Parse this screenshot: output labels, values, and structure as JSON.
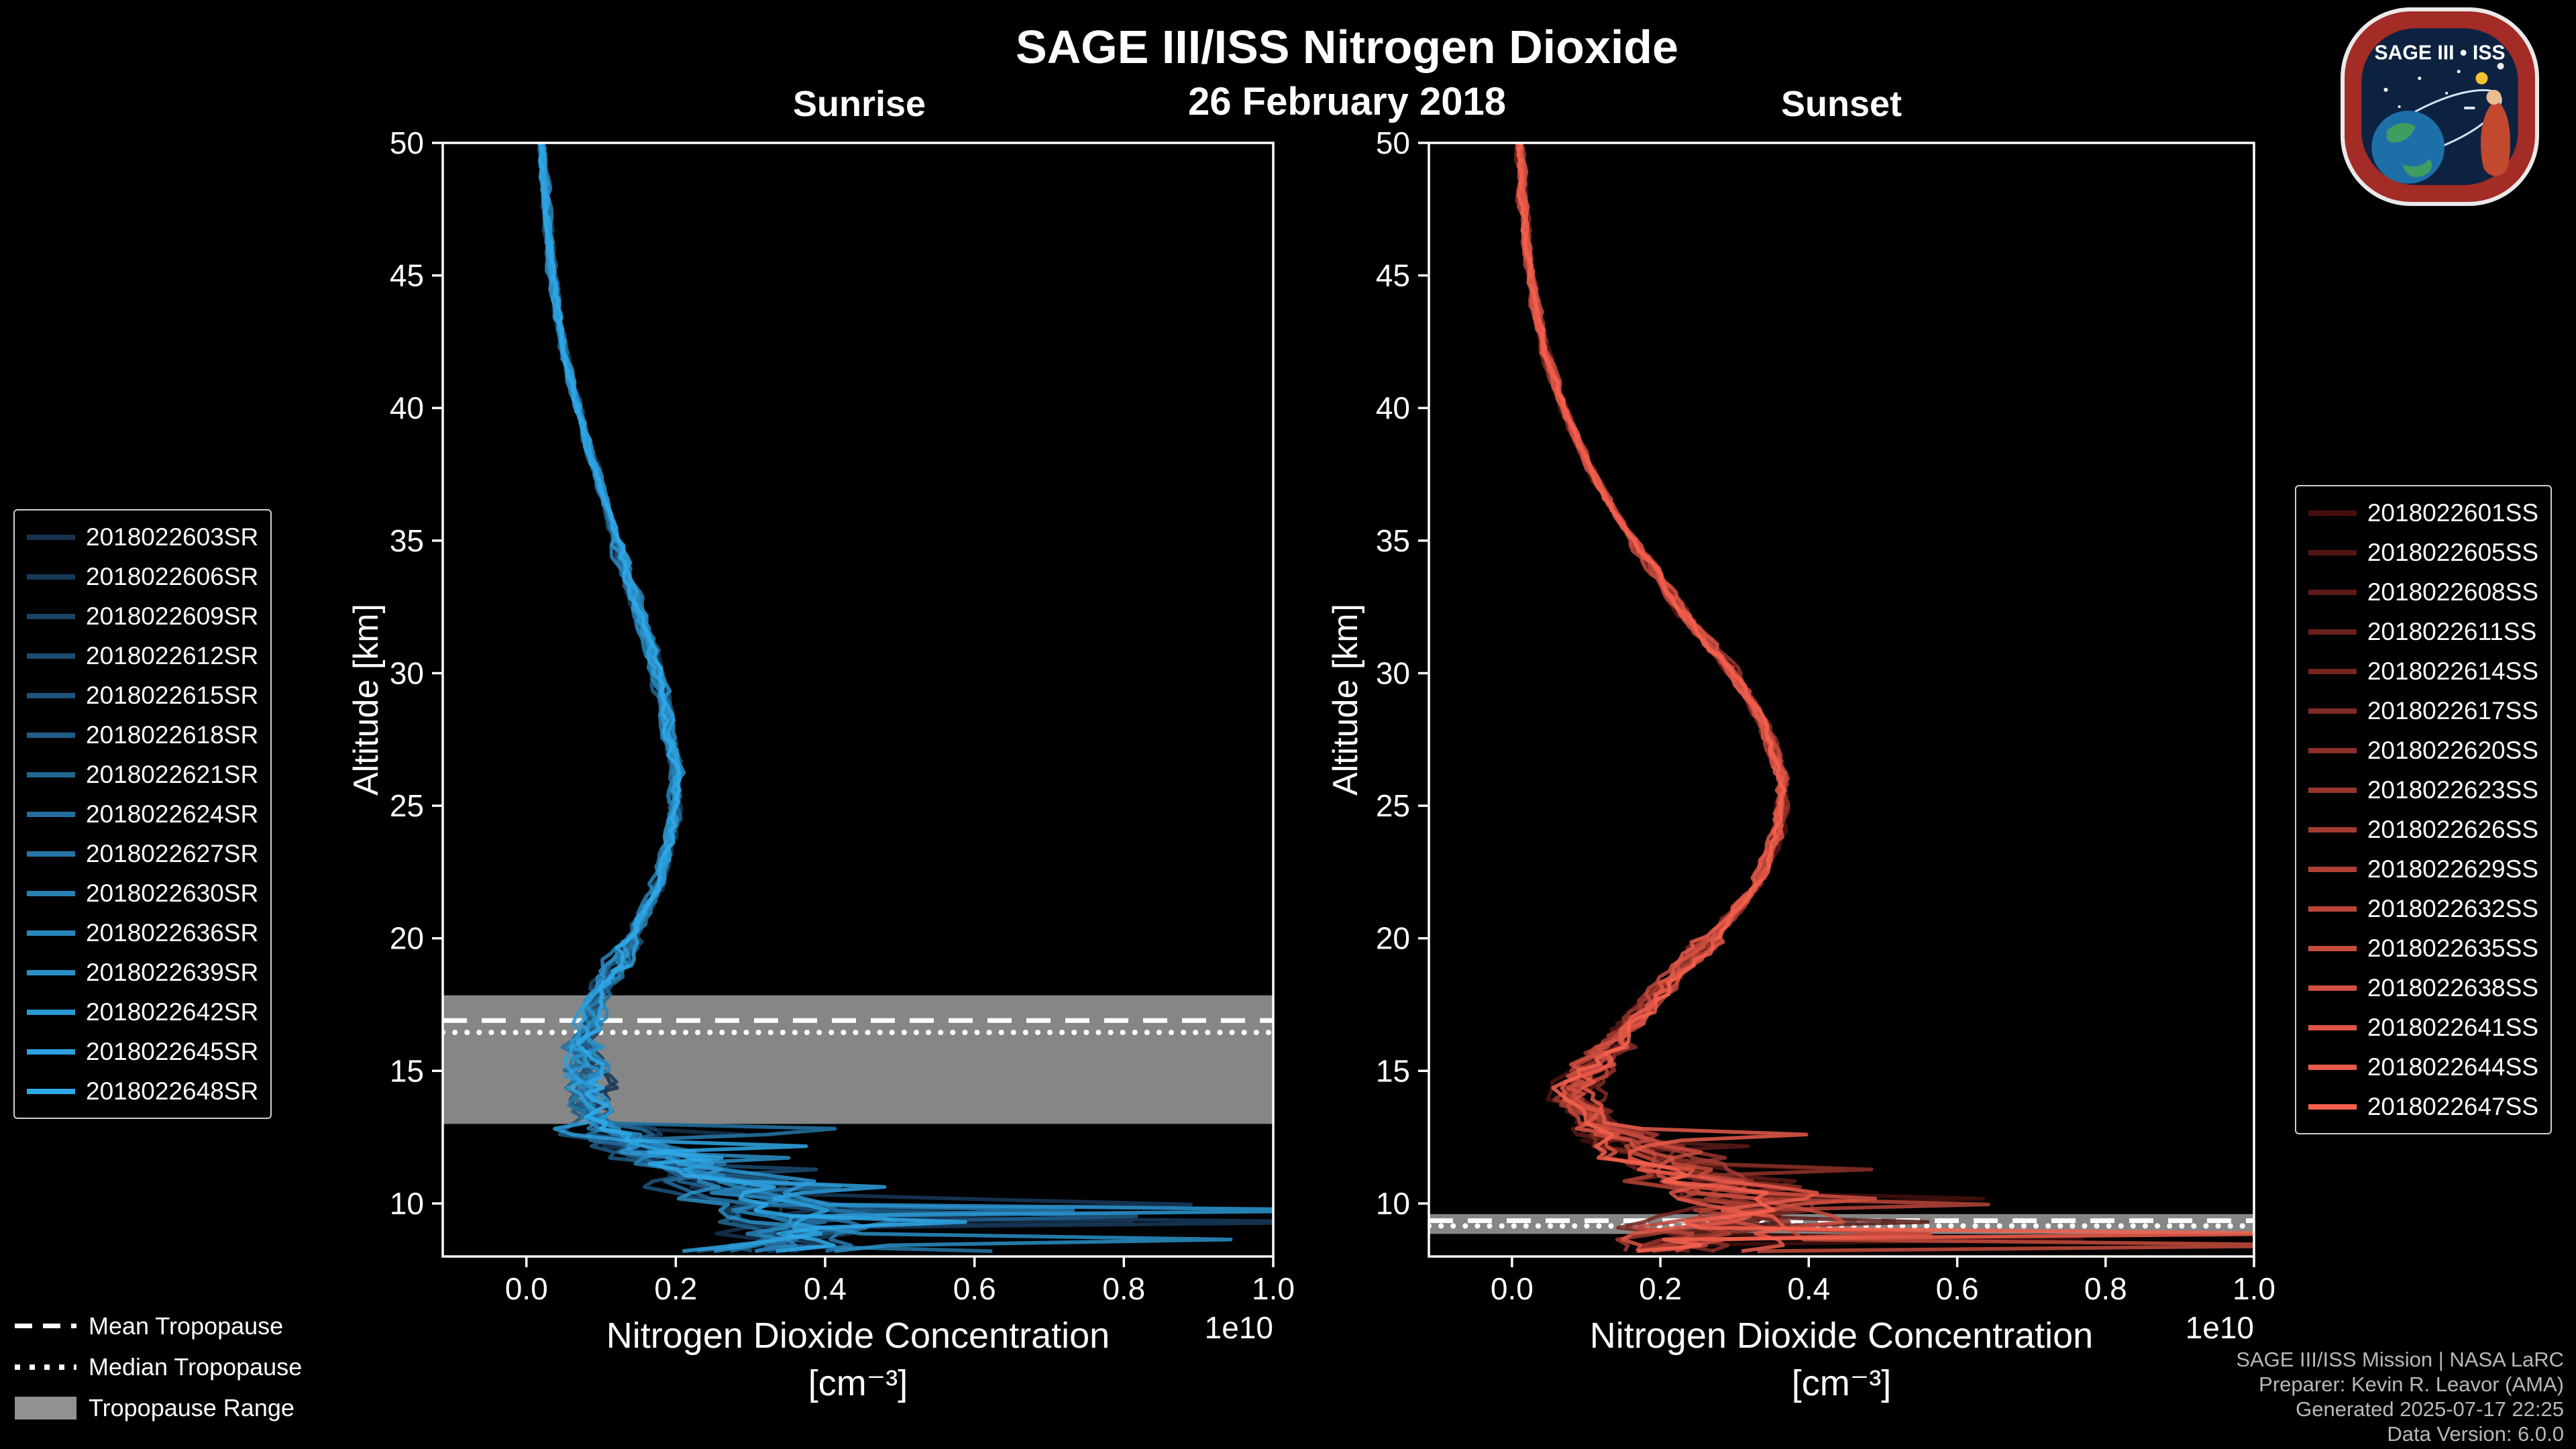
{
  "header": {
    "title": "SAGE III/ISS Nitrogen Dioxide",
    "date": "26 February 2018"
  },
  "logo": {
    "text": "SAGE III • ISS"
  },
  "colors": {
    "background": "#000000",
    "text": "#ffffff",
    "credits_text": "#b8b8b8",
    "legend_border": "#cfcfcf"
  },
  "tropopause_legend": {
    "mean_label": "Mean Tropopause",
    "median_label": "Median Tropopause",
    "range_label": "Tropopause Range"
  },
  "credits": [
    "SAGE III/ISS Mission | NASA LaRC",
    "Preparer: Kevin R. Leavor (AMA)",
    "Generated 2025-07-17 22:25",
    "Data Version: 6.0.0"
  ],
  "chart_data": [
    {
      "type": "line",
      "panel": "sunrise",
      "title": "Sunrise",
      "xlabel": "Nitrogen Dioxide Concentration",
      "xlabel_units": "[cm⁻³]",
      "ylabel": "Altitude [km]",
      "offset_text": "1e10",
      "xlim": [
        -0.112,
        1.0
      ],
      "ylim": [
        8.0,
        50.0
      ],
      "xticks": [
        0.0,
        0.2,
        0.4,
        0.6,
        0.8,
        1.0
      ],
      "yticks": [
        10,
        15,
        20,
        25,
        30,
        35,
        40,
        45,
        50
      ],
      "grid": false,
      "legend_position": "outside-left",
      "colors": {
        "line_start": "#16324f",
        "line_end": "#2fa8e8",
        "band": "#999999",
        "tropopause_lines": "#ffffff"
      },
      "series": [
        "2018022603SR",
        "2018022606SR",
        "2018022609SR",
        "2018022612SR",
        "2018022615SR",
        "2018022618SR",
        "2018022621SR",
        "2018022624SR",
        "2018022627SR",
        "2018022630SR",
        "2018022636SR",
        "2018022639SR",
        "2018022642SR",
        "2018022645SR",
        "2018022648SR"
      ],
      "tropopause": {
        "mean_km": 16.9,
        "median_km": 16.45,
        "range_km": [
          13.0,
          17.85
        ]
      },
      "mean_profile": {
        "altitude_km": [
          50,
          48,
          46,
          44,
          42,
          40,
          38,
          36,
          34,
          32,
          30,
          28,
          26,
          24,
          22,
          20,
          18,
          16,
          14,
          13,
          12,
          11,
          10,
          9,
          8
        ],
        "concentration_1e10": [
          0.02,
          0.025,
          0.03,
          0.04,
          0.05,
          0.07,
          0.09,
          0.11,
          0.13,
          0.155,
          0.175,
          0.19,
          0.2,
          0.195,
          0.175,
          0.14,
          0.1,
          0.075,
          0.08,
          0.1,
          0.16,
          0.24,
          0.33,
          0.38,
          0.3
        ]
      }
    },
    {
      "type": "line",
      "panel": "sunset",
      "title": "Sunset",
      "xlabel": "Nitrogen Dioxide Concentration",
      "xlabel_units": "[cm⁻³]",
      "ylabel": "Altitude [km]",
      "offset_text": "1e10",
      "xlim": [
        -0.112,
        1.0
      ],
      "ylim": [
        8.0,
        50.0
      ],
      "xticks": [
        0.0,
        0.2,
        0.4,
        0.6,
        0.8,
        1.0
      ],
      "yticks": [
        10,
        15,
        20,
        25,
        30,
        35,
        40,
        45,
        50
      ],
      "grid": false,
      "legend_position": "outside-right",
      "colors": {
        "line_start": "#44100e",
        "line_end": "#f4604e",
        "band": "#999999",
        "tropopause_lines": "#ffffff"
      },
      "series": [
        "2018022601SS",
        "2018022605SS",
        "2018022608SS",
        "2018022611SS",
        "2018022614SS",
        "2018022617SS",
        "2018022620SS",
        "2018022623SS",
        "2018022626SS",
        "2018022629SS",
        "2018022632SS",
        "2018022635SS",
        "2018022638SS",
        "2018022641SS",
        "2018022644SS",
        "2018022647SS"
      ],
      "tropopause": {
        "mean_km": 9.35,
        "median_km": 9.15,
        "range_km": [
          8.85,
          9.6
        ]
      },
      "mean_profile": {
        "altitude_km": [
          50,
          48,
          46,
          44,
          42,
          40,
          38,
          36,
          34,
          32,
          30,
          28,
          26,
          24,
          22,
          20,
          18,
          16,
          15,
          14,
          13,
          12,
          11,
          10,
          9,
          8
        ],
        "concentration_1e10": [
          0.01,
          0.015,
          0.02,
          0.03,
          0.045,
          0.07,
          0.1,
          0.14,
          0.19,
          0.24,
          0.3,
          0.34,
          0.365,
          0.36,
          0.33,
          0.27,
          0.2,
          0.13,
          0.1,
          0.09,
          0.12,
          0.18,
          0.26,
          0.32,
          0.28,
          0.22
        ]
      }
    }
  ]
}
